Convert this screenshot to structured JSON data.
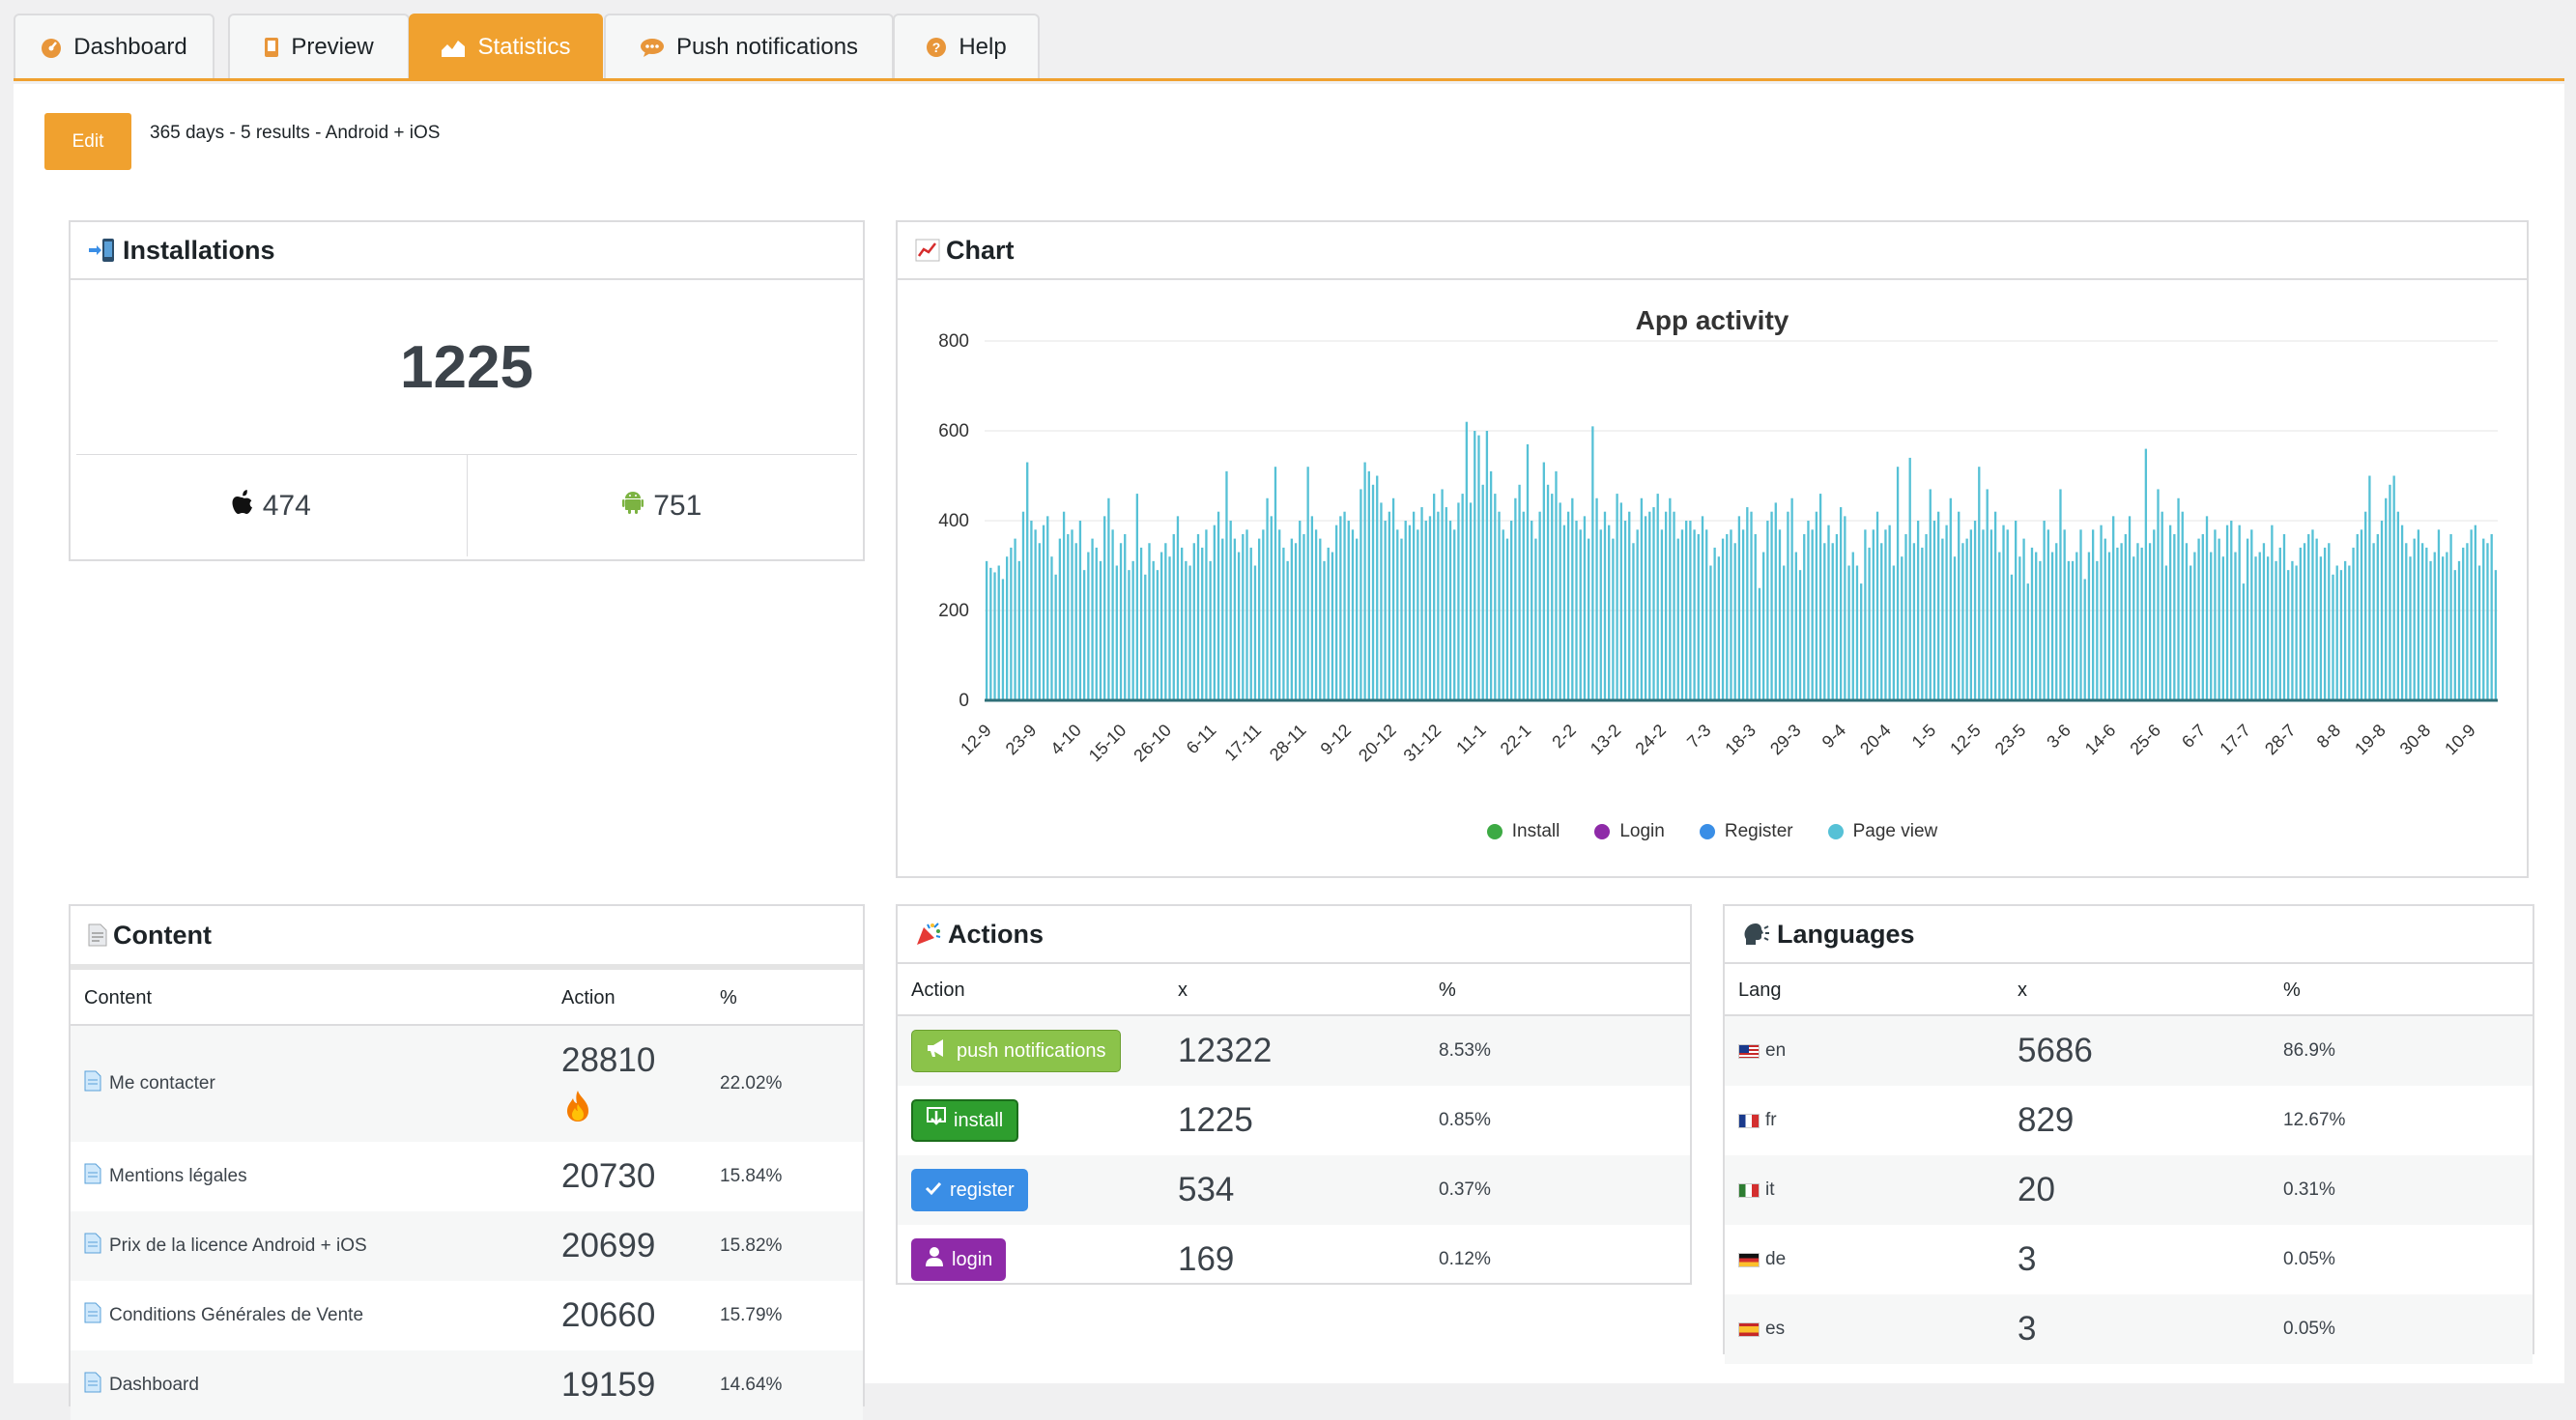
{
  "tabs": [
    {
      "label": "Dashboard",
      "icon": "dashboard-icon",
      "active": false
    },
    {
      "label": "Preview",
      "icon": "phone-icon",
      "active": false
    },
    {
      "label": "Statistics",
      "icon": "chart-area-icon",
      "active": true
    },
    {
      "label": "Push notifications",
      "icon": "speech-bubble-icon",
      "active": false
    },
    {
      "label": "Help",
      "icon": "help-icon",
      "active": false
    }
  ],
  "toolbar": {
    "edit_label": "Edit",
    "summary": "365 days - 5 results - Android + iOS"
  },
  "installations": {
    "title": "Installations",
    "total": "1225",
    "ios": "474",
    "android": "751"
  },
  "chart_panel": {
    "title": "Chart"
  },
  "chart_data": {
    "type": "bar",
    "title": "App activity",
    "xlabel": "",
    "ylabel": "",
    "ylim": [
      0,
      800
    ],
    "yticks": [
      "0",
      "200",
      "400",
      "600",
      "800"
    ],
    "grid": true,
    "legend_position": "bottom",
    "x_tick_labels": [
      "12-9",
      "23-9",
      "4-10",
      "15-10",
      "26-10",
      "6-11",
      "17-11",
      "28-11",
      "9-12",
      "20-12",
      "31-12",
      "11-1",
      "22-1",
      "2-2",
      "13-2",
      "24-2",
      "7-3",
      "18-3",
      "29-3",
      "9-4",
      "20-4",
      "1-5",
      "12-5",
      "23-5",
      "3-6",
      "14-6",
      "25-6",
      "6-7",
      "17-7",
      "28-7",
      "8-8",
      "19-8",
      "30-8",
      "10-9"
    ],
    "series": [
      {
        "name": "Install",
        "color": "#3daa44"
      },
      {
        "name": "Login",
        "color": "#8e2aa8"
      },
      {
        "name": "Register",
        "color": "#3a8ee6"
      },
      {
        "name": "Page view",
        "color": "#56c1d6",
        "values": [
          310,
          295,
          285,
          300,
          270,
          320,
          340,
          360,
          310,
          420,
          530,
          400,
          380,
          350,
          390,
          410,
          320,
          280,
          360,
          420,
          370,
          380,
          350,
          400,
          290,
          330,
          360,
          340,
          310,
          410,
          450,
          380,
          300,
          350,
          370,
          290,
          310,
          460,
          340,
          280,
          350,
          310,
          290,
          330,
          350,
          320,
          370,
          410,
          340,
          310,
          300,
          350,
          370,
          340,
          380,
          310,
          390,
          420,
          360,
          510,
          400,
          360,
          330,
          370,
          380,
          340,
          300,
          360,
          380,
          450,
          410,
          520,
          380,
          340,
          310,
          360,
          350,
          400,
          370,
          520,
          410,
          380,
          360,
          310,
          340,
          330,
          390,
          410,
          420,
          400,
          380,
          360,
          470,
          530,
          510,
          480,
          500,
          440,
          400,
          420,
          450,
          380,
          360,
          400,
          390,
          420,
          380,
          430,
          400,
          410,
          460,
          420,
          470,
          430,
          400,
          380,
          440,
          460,
          620,
          440,
          600,
          590,
          480,
          600,
          510,
          460,
          420,
          380,
          360,
          400,
          450,
          480,
          420,
          570,
          400,
          360,
          420,
          530,
          480,
          460,
          510,
          440,
          390,
          420,
          450,
          400,
          380,
          410,
          360,
          610,
          450,
          380,
          420,
          390,
          360,
          460,
          440,
          400,
          420,
          350,
          380,
          450,
          410,
          420,
          430,
          460,
          380,
          420,
          450,
          420,
          360,
          380,
          400,
          400,
          380,
          370,
          410,
          380,
          300,
          340,
          320,
          360,
          370,
          380,
          350,
          410,
          380,
          430,
          420,
          370,
          250,
          330,
          400,
          420,
          440,
          380,
          300,
          420,
          450,
          330,
          290,
          370,
          400,
          380,
          420,
          460,
          350,
          390,
          350,
          370,
          430,
          410,
          300,
          330,
          300,
          260,
          380,
          340,
          380,
          420,
          350,
          380,
          390,
          300,
          520,
          320,
          370,
          540,
          350,
          400,
          340,
          370,
          470,
          400,
          420,
          360,
          390,
          450,
          320,
          420,
          350,
          360,
          380,
          400,
          520,
          380,
          470,
          380,
          420,
          330,
          390,
          380,
          280,
          400,
          320,
          360,
          260,
          340,
          330,
          310,
          400,
          380,
          330,
          350,
          470,
          380,
          310,
          310,
          330,
          380,
          270,
          330,
          380,
          310,
          390,
          360,
          330,
          410,
          340,
          350,
          370,
          410,
          320,
          350,
          340,
          560,
          350,
          380,
          470,
          420,
          300,
          390,
          370,
          450,
          420,
          350,
          300,
          330,
          360,
          370,
          410,
          330,
          380,
          360,
          320,
          390,
          400,
          330,
          390,
          260,
          360,
          380,
          320,
          330,
          350,
          320,
          390,
          310,
          340,
          370,
          290,
          310,
          300,
          340,
          350,
          370,
          380,
          360,
          320,
          340,
          350,
          280,
          300,
          290,
          310,
          300,
          340,
          370,
          380,
          420,
          500,
          350,
          370,
          400,
          450,
          480,
          500,
          420,
          390,
          350,
          320,
          360,
          380,
          350,
          340,
          310,
          330,
          380,
          320,
          330,
          370,
          290,
          310,
          340,
          350,
          380,
          390,
          300,
          360,
          350,
          370,
          290
        ]
      }
    ]
  },
  "content": {
    "title": "Content",
    "columns": [
      "Content",
      "Action",
      "%"
    ],
    "rows": [
      {
        "name": "Me contacter",
        "action": "28810",
        "pct": "22.02%",
        "hot": true
      },
      {
        "name": "Mentions légales",
        "action": "20730",
        "pct": "15.84%",
        "hot": false
      },
      {
        "name": "Prix de la licence Android + iOS",
        "action": "20699",
        "pct": "15.82%",
        "hot": false
      },
      {
        "name": "Conditions Générales de Vente",
        "action": "20660",
        "pct": "15.79%",
        "hot": false
      },
      {
        "name": "Dashboard",
        "action": "19159",
        "pct": "14.64%",
        "hot": false
      }
    ]
  },
  "actions": {
    "title": "Actions",
    "columns": [
      "Action",
      "x",
      "%"
    ],
    "rows": [
      {
        "label": "push notifications",
        "icon": "megaphone-icon",
        "color": "#8bc34a",
        "x": "12322",
        "pct": "8.53%"
      },
      {
        "label": "install",
        "icon": "download-icon",
        "color": "#2e9e2e",
        "x": "1225",
        "pct": "0.85%"
      },
      {
        "label": "register",
        "icon": "checkmark-icon",
        "color": "#3a8ee6",
        "x": "534",
        "pct": "0.37%"
      },
      {
        "label": "login",
        "icon": "user-icon",
        "color": "#8e2aa8",
        "x": "169",
        "pct": "0.12%"
      }
    ]
  },
  "languages": {
    "title": "Languages",
    "columns": [
      "Lang",
      "x",
      "%"
    ],
    "rows": [
      {
        "lang": "en",
        "flag": "us-flag-icon",
        "x": "5686",
        "pct": "86.9%"
      },
      {
        "lang": "fr",
        "flag": "fr-flag-icon",
        "x": "829",
        "pct": "12.67%"
      },
      {
        "lang": "it",
        "flag": "it-flag-icon",
        "x": "20",
        "pct": "0.31%"
      },
      {
        "lang": "de",
        "flag": "de-flag-icon",
        "x": "3",
        "pct": "0.05%"
      },
      {
        "lang": "es",
        "flag": "es-flag-icon",
        "x": "3",
        "pct": "0.05%"
      }
    ]
  }
}
